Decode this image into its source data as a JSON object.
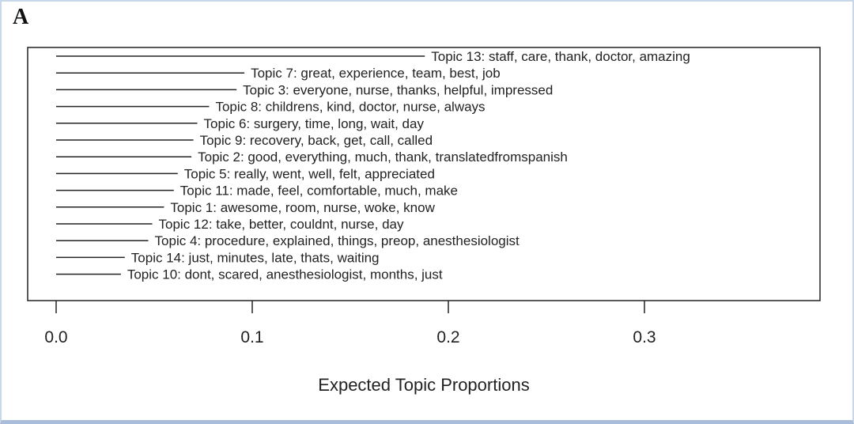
{
  "panel_label": "A",
  "chart_data": {
    "type": "bar",
    "orientation": "horizontal",
    "mark": "line-segment",
    "title": "",
    "xlabel": "Expected Topic Proportions",
    "ylabel": "",
    "xlim": [
      0,
      0.39
    ],
    "xticks": [
      0.0,
      0.1,
      0.2,
      0.3
    ],
    "xtick_labels": [
      "0.0",
      "0.1",
      "0.2",
      "0.3"
    ],
    "grid": false,
    "categories": [
      "Topic 13: staff, care, thank, doctor, amazing",
      "Topic 7: great, experience, team, best, job",
      "Topic 3: everyone, nurse, thanks, helpful, impressed",
      "Topic 8: childrens, kind, doctor, nurse, always",
      "Topic 6: surgery, time, long, wait, day",
      "Topic 9: recovery, back, get, call, called",
      "Topic 2: good, everything, much, thank, translatedfromspanish",
      "Topic 5: really, went, well, felt, appreciated",
      "Topic 11: made, feel, comfortable, much, make",
      "Topic 1: awesome, room, nurse, woke, know",
      "Topic 12: take, better, couldnt, nurse, day",
      "Topic 4: procedure, explained, things, preop, anesthesiologist",
      "Topic 14: just, minutes, late, thats, waiting",
      "Topic 10: dont, scared, anesthesiologist, months, just"
    ],
    "values": [
      0.188,
      0.096,
      0.092,
      0.078,
      0.072,
      0.07,
      0.069,
      0.062,
      0.06,
      0.055,
      0.049,
      0.047,
      0.035,
      0.033
    ]
  }
}
